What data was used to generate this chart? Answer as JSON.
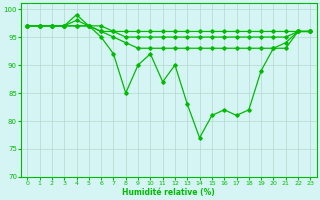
{
  "line1": {
    "x": [
      0,
      1,
      2,
      3,
      4,
      5,
      6,
      7,
      8,
      9,
      10,
      11,
      12,
      13,
      14,
      15,
      16,
      17,
      18,
      19,
      20,
      21,
      22,
      23
    ],
    "y": [
      97,
      97,
      97,
      97,
      99,
      97,
      95,
      92,
      85,
      90,
      92,
      87,
      90,
      83,
      77,
      81,
      82,
      81,
      82,
      89,
      93,
      94,
      96,
      96
    ]
  },
  "line2": {
    "x": [
      0,
      1,
      2,
      3,
      4,
      5,
      6,
      7,
      8,
      9,
      10,
      11,
      12,
      13,
      14,
      15,
      16,
      17,
      18,
      19,
      20,
      21,
      22,
      23
    ],
    "y": [
      97,
      97,
      97,
      97,
      98,
      97,
      97,
      96,
      96,
      96,
      96,
      96,
      96,
      96,
      96,
      96,
      96,
      96,
      96,
      96,
      96,
      96,
      96,
      96
    ]
  },
  "line3": {
    "x": [
      0,
      1,
      2,
      3,
      4,
      5,
      6,
      7,
      8,
      9,
      10,
      11,
      12,
      13,
      14,
      15,
      16,
      17,
      18,
      19,
      20,
      21,
      22,
      23
    ],
    "y": [
      97,
      97,
      97,
      97,
      97,
      97,
      96,
      96,
      95,
      95,
      95,
      95,
      95,
      95,
      95,
      95,
      95,
      95,
      95,
      95,
      95,
      95,
      96,
      96
    ]
  },
  "line4": {
    "x": [
      0,
      1,
      2,
      3,
      4,
      5,
      6,
      7,
      8,
      9,
      10,
      11,
      12,
      13,
      14,
      15,
      16,
      17,
      18,
      19,
      20,
      21,
      22,
      23
    ],
    "y": [
      97,
      97,
      97,
      97,
      97,
      97,
      96,
      95,
      94,
      93,
      93,
      93,
      93,
      93,
      93,
      93,
      93,
      93,
      93,
      93,
      93,
      93,
      96,
      96
    ]
  },
  "ylim": [
    70,
    101
  ],
  "xlim": [
    -0.5,
    23.5
  ],
  "yticks": [
    70,
    75,
    80,
    85,
    90,
    95,
    100
  ],
  "xticks": [
    0,
    1,
    2,
    3,
    4,
    5,
    6,
    7,
    8,
    9,
    10,
    11,
    12,
    13,
    14,
    15,
    16,
    17,
    18,
    19,
    20,
    21,
    22,
    23
  ],
  "xlabel": "Humidité relative (%)",
  "line_color": "#00bb00",
  "bg_color": "#d5f5f5",
  "grid_color": "#b0d9cc",
  "marker": "D",
  "marker_size": 1.8,
  "line_width": 0.9
}
